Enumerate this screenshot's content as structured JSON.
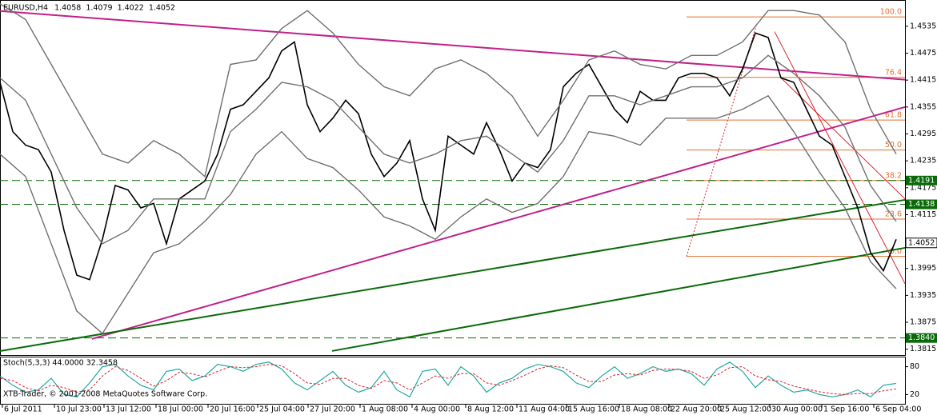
{
  "chart_data": [
    {
      "type": "line",
      "title": "EURUSD,H4",
      "ohlc_header": [
        1.4058,
        1.4079,
        1.4022,
        1.4052
      ],
      "xlim": [
        0,
        282.75
      ],
      "ylim": [
        1.3802,
        1.459
      ],
      "yticks": [
        1.4535,
        1.4475,
        1.4415,
        1.4355,
        1.4295,
        1.4235,
        1.4175,
        1.4115,
        1.3995,
        1.3935,
        1.3875,
        1.3815
      ],
      "xticks": [
        {
          "value": 0.75,
          "label": "6 Jul 2011"
        },
        {
          "value": 17,
          "label": "10 Jul 23:00"
        },
        {
          "value": 32.5,
          "label": "13 Jul 12:00"
        },
        {
          "value": 48.75,
          "label": "18 Jul 00:00"
        },
        {
          "value": 65,
          "label": "20 Jul 16:00"
        },
        {
          "value": 80.5,
          "label": "25 Jul 04:00"
        },
        {
          "value": 96.25,
          "label": "27 Jul 20:00"
        },
        {
          "value": 112.5,
          "label": "1 Aug 08:00"
        },
        {
          "value": 128.75,
          "label": "4 Aug 00:00"
        },
        {
          "value": 145.5,
          "label": "8 Aug 12:00"
        },
        {
          "value": 161.5,
          "label": "11 Aug 04:00"
        },
        {
          "value": 177,
          "label": "15 Aug 16:00"
        },
        {
          "value": 193.5,
          "label": "18 Aug 08:00"
        },
        {
          "value": 209,
          "label": "22 Aug 20:00"
        },
        {
          "value": 224.5,
          "label": "25 Aug 12:00"
        },
        {
          "value": 240.5,
          "label": "30 Aug 00:00"
        },
        {
          "value": 256.75,
          "label": "1 Sep 16:00"
        },
        {
          "value": 273,
          "label": "6 Sep 04:00"
        }
      ],
      "series": [
        {
          "color": "#000000",
          "width": 1.6,
          "x": [
            0,
            4,
            8,
            12,
            16,
            20,
            24,
            28,
            32,
            36,
            40,
            44,
            48,
            52,
            56,
            60,
            64,
            68,
            72,
            76,
            80,
            84,
            88,
            92,
            96,
            100,
            104,
            108,
            112,
            116,
            120,
            124,
            128,
            132,
            136,
            140,
            144,
            148,
            152,
            156,
            160,
            164,
            168,
            172,
            176,
            180,
            184,
            188,
            192,
            196,
            200,
            204,
            208,
            212,
            216,
            220,
            224,
            228,
            232,
            236,
            240,
            244,
            248,
            252,
            256,
            260,
            264,
            268,
            272,
            276,
            280
          ],
          "values": [
            1.441,
            1.43,
            1.427,
            1.426,
            1.421,
            1.408,
            1.398,
            1.397,
            1.406,
            1.418,
            1.417,
            1.413,
            1.414,
            1.405,
            1.415,
            1.417,
            1.419,
            1.425,
            1.435,
            1.436,
            1.439,
            1.442,
            1.448,
            1.45,
            1.436,
            1.43,
            1.433,
            1.437,
            1.434,
            1.425,
            1.42,
            1.423,
            1.428,
            1.415,
            1.408,
            1.429,
            1.427,
            1.425,
            1.432,
            1.426,
            1.419,
            1.423,
            1.422,
            1.426,
            1.44,
            1.443,
            1.445,
            1.44,
            1.435,
            1.432,
            1.439,
            1.437,
            1.437,
            1.442,
            1.443,
            1.443,
            1.442,
            1.438,
            1.444,
            1.452,
            1.451,
            1.442,
            1.441,
            1.435,
            1.429,
            1.427,
            1.42,
            1.413,
            1.403,
            1.399,
            1.406
          ]
        },
        {
          "color": "#707070",
          "width": 1.4,
          "x": [
            0,
            8,
            16,
            24,
            32,
            40,
            48,
            56,
            64,
            72,
            80,
            88,
            96,
            104,
            112,
            120,
            128,
            136,
            144,
            152,
            160,
            168,
            176,
            184,
            192,
            200,
            208,
            216,
            224,
            232,
            240,
            248,
            256,
            264,
            272,
            280
          ],
          "values": [
            1.4585,
            1.455,
            1.445,
            1.435,
            1.425,
            1.423,
            1.428,
            1.425,
            1.42,
            1.445,
            1.446,
            1.453,
            1.457,
            1.452,
            1.445,
            1.44,
            1.438,
            1.444,
            1.446,
            1.443,
            1.438,
            1.429,
            1.437,
            1.446,
            1.448,
            1.445,
            1.444,
            1.447,
            1.447,
            1.45,
            1.457,
            1.457,
            1.456,
            1.45,
            1.435,
            1.425
          ]
        },
        {
          "color": "#707070",
          "width": 1.4,
          "x": [
            0,
            8,
            16,
            24,
            32,
            40,
            48,
            56,
            64,
            72,
            80,
            88,
            96,
            104,
            112,
            120,
            128,
            136,
            144,
            152,
            160,
            168,
            176,
            184,
            192,
            200,
            208,
            216,
            224,
            232,
            240,
            248,
            256,
            264,
            272,
            280
          ],
          "values": [
            1.442,
            1.437,
            1.425,
            1.413,
            1.405,
            1.408,
            1.415,
            1.415,
            1.415,
            1.43,
            1.435,
            1.441,
            1.44,
            1.437,
            1.431,
            1.425,
            1.423,
            1.425,
            1.428,
            1.429,
            1.425,
            1.421,
            1.428,
            1.438,
            1.438,
            1.436,
            1.438,
            1.44,
            1.44,
            1.442,
            1.447,
            1.443,
            1.438,
            1.431,
            1.418,
            1.41
          ]
        },
        {
          "color": "#707070",
          "width": 1.4,
          "x": [
            0,
            8,
            16,
            24,
            32,
            40,
            48,
            56,
            64,
            72,
            80,
            88,
            96,
            104,
            112,
            120,
            128,
            136,
            144,
            152,
            160,
            168,
            176,
            184,
            192,
            200,
            208,
            216,
            224,
            232,
            240,
            248,
            256,
            264,
            272,
            280
          ],
          "values": [
            1.425,
            1.42,
            1.405,
            1.39,
            1.385,
            1.394,
            1.403,
            1.405,
            1.41,
            1.416,
            1.425,
            1.43,
            1.424,
            1.422,
            1.417,
            1.411,
            1.409,
            1.406,
            1.411,
            1.415,
            1.412,
            1.414,
            1.42,
            1.43,
            1.429,
            1.427,
            1.433,
            1.433,
            1.433,
            1.435,
            1.438,
            1.43,
            1.421,
            1.413,
            1.401,
            1.395
          ]
        }
      ],
      "trendlines": [
        {
          "color": "#c0208a",
          "width": 2,
          "x": [
            0,
            282.75
          ],
          "y": [
            1.4569,
            1.4416
          ]
        },
        {
          "color": "#c0208a",
          "width": 2,
          "x": [
            28.75,
            282.75
          ],
          "y": [
            1.3838,
            1.4355
          ]
        },
        {
          "color": "#0a6a0a",
          "width": 2,
          "x": [
            0,
            282.75
          ],
          "y": [
            1.3811,
            1.4148
          ]
        },
        {
          "color": "#0a6a0a",
          "width": 2,
          "x": [
            103.75,
            282.75
          ],
          "y": [
            1.3811,
            1.4041
          ]
        },
        {
          "color": "#e0202a",
          "width": 1,
          "x": [
            242,
            282.75
          ],
          "y": [
            1.4523,
            1.3961
          ]
        },
        {
          "color": "#e0202a",
          "width": 1,
          "x": [
            244,
            282.75
          ],
          "y": [
            1.442,
            1.415
          ]
        },
        {
          "color": "#e0202a",
          "width": 1,
          "dash": "2,2",
          "x": [
            214.5,
            236.25
          ],
          "y": [
            1.4022,
            1.4535
          ]
        }
      ],
      "fibonacci": {
        "color": "#e07030",
        "x": [
          214.5,
          282.75
        ],
        "levels": [
          {
            "label": "100.0",
            "value": 1.4556
          },
          {
            "label": "76.4",
            "value": 1.4421
          },
          {
            "label": "61.8",
            "value": 1.4326
          },
          {
            "label": "50.0",
            "value": 1.4259
          },
          {
            "label": "38.2",
            "value": 1.4191
          },
          {
            "label": "23.6",
            "value": 1.4105
          },
          {
            "label": "0.0",
            "value": 1.4022
          }
        ]
      },
      "hlines": [
        {
          "value": 1.4191,
          "color": "#0a6a0a"
        },
        {
          "value": 1.4138,
          "color": "#0a6a0a"
        },
        {
          "value": {
            "value": 1.384,
            "label": "1.3840"
          },
          "color": "#0a6a0a"
        }
      ],
      "current_price": 1.4052
    },
    {
      "type": "line",
      "title": "Stoch(5,3,3) 44.0000 32.3458",
      "ylim": [
        0,
        100
      ],
      "yticks": [
        80,
        20
      ],
      "xlim": [
        0,
        282.75
      ],
      "series": [
        {
          "color": "#20a8a0",
          "width": 1.2,
          "x": [
            0,
            4,
            8,
            12,
            16,
            20,
            24,
            28,
            32,
            36,
            40,
            44,
            48,
            52,
            56,
            60,
            64,
            68,
            72,
            76,
            80,
            84,
            88,
            92,
            96,
            100,
            104,
            108,
            112,
            116,
            120,
            124,
            128,
            132,
            136,
            140,
            144,
            148,
            152,
            156,
            160,
            164,
            168,
            172,
            176,
            180,
            184,
            188,
            192,
            196,
            200,
            204,
            208,
            212,
            216,
            220,
            224,
            228,
            232,
            236,
            240,
            244,
            248,
            252,
            256,
            260,
            264,
            268,
            272,
            276,
            280
          ],
          "values": [
            60,
            40,
            25,
            30,
            55,
            20,
            15,
            45,
            80,
            85,
            60,
            40,
            30,
            70,
            75,
            50,
            60,
            85,
            80,
            70,
            85,
            90,
            75,
            45,
            30,
            50,
            70,
            40,
            25,
            35,
            70,
            30,
            15,
            70,
            75,
            40,
            80,
            60,
            25,
            45,
            55,
            75,
            85,
            80,
            70,
            45,
            35,
            60,
            80,
            55,
            65,
            80,
            70,
            75,
            65,
            40,
            75,
            90,
            70,
            35,
            60,
            40,
            25,
            30,
            20,
            15,
            20,
            30,
            15,
            40,
            44
          ]
        },
        {
          "color": "#e0202a",
          "width": 1,
          "dash": "3,2",
          "x": [
            0,
            4,
            8,
            12,
            16,
            20,
            24,
            28,
            32,
            36,
            40,
            44,
            48,
            52,
            56,
            60,
            64,
            68,
            72,
            76,
            80,
            84,
            88,
            92,
            96,
            100,
            104,
            108,
            112,
            116,
            120,
            124,
            128,
            132,
            136,
            140,
            144,
            148,
            152,
            156,
            160,
            164,
            168,
            172,
            176,
            180,
            184,
            188,
            192,
            196,
            200,
            204,
            208,
            212,
            216,
            220,
            224,
            228,
            232,
            236,
            240,
            244,
            248,
            252,
            256,
            260,
            264,
            268,
            272,
            276,
            280
          ],
          "values": [
            55,
            50,
            35,
            28,
            40,
            35,
            25,
            30,
            60,
            80,
            72,
            55,
            38,
            50,
            68,
            65,
            58,
            70,
            80,
            78,
            80,
            85,
            82,
            65,
            45,
            42,
            55,
            55,
            40,
            33,
            50,
            45,
            30,
            45,
            60,
            55,
            65,
            65,
            45,
            40,
            50,
            62,
            75,
            82,
            78,
            62,
            48,
            48,
            62,
            65,
            62,
            72,
            75,
            74,
            70,
            55,
            62,
            78,
            80,
            60,
            52,
            48,
            38,
            32,
            26,
            22,
            20,
            22,
            22,
            28,
            32
          ]
        }
      ]
    }
  ],
  "footer": "XTB-Trader, © 2001-2008 MetaQuotes Software Corp."
}
